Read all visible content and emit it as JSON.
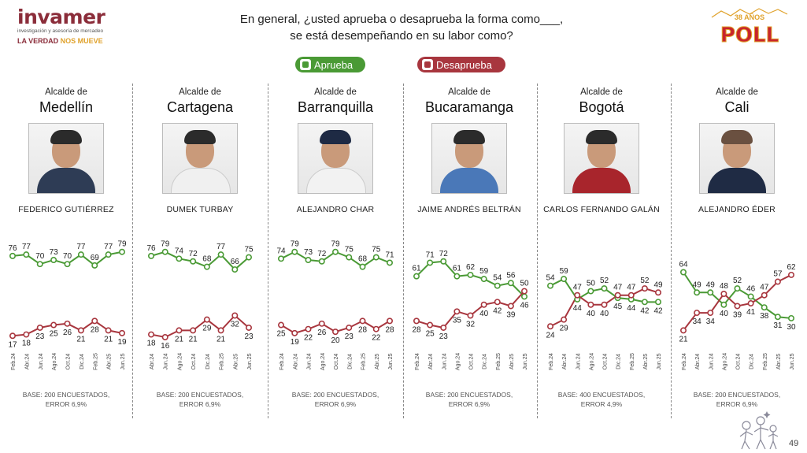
{
  "header": {
    "logo_name": "invamer",
    "logo_tagline": "investigación y asesoría de mercadeo",
    "logo_motto_a": "LA VERDAD ",
    "logo_motto_b": "NOS MUEVE",
    "question_line1": "En general, ¿usted aprueba o desaprueba la forma como___,",
    "question_line2": "se está desempeñando en su labor como?",
    "poll_top": "38 AÑOS",
    "poll_main": "POLL"
  },
  "legend": {
    "approve": "Aprueba",
    "disapprove": "Desaprueba"
  },
  "colors": {
    "approve": "#4a9a35",
    "disapprove": "#a8363e"
  },
  "page_number": "49",
  "chart_data": [
    {
      "type": "line",
      "title": "Alcalde de",
      "city": "Medellín",
      "person": "FEDERICO GUTIÉRREZ",
      "x": [
        "Feb.24",
        "Abr.24",
        "Jun.24",
        "Ago.24",
        "Oct.24",
        "Dic.24",
        "Feb.25",
        "Abr.25",
        "Jun.25"
      ],
      "series": [
        {
          "name": "Aprueba",
          "values": [
            76,
            77,
            70,
            73,
            70,
            77,
            69,
            77,
            79
          ]
        },
        {
          "name": "Desaprueba",
          "values": [
            17,
            18,
            23,
            25,
            26,
            21,
            28,
            21,
            19
          ]
        }
      ],
      "base": [
        "BASE: 200 ENCUESTADOS,",
        "ERROR 6,9%"
      ]
    },
    {
      "type": "line",
      "title": "Alcalde de",
      "city": "Cartagena",
      "person": "DUMEK TURBAY",
      "x": [
        "Abr.24",
        "Jun.24",
        "Ago.24",
        "Oct.24",
        "Dic.24",
        "Feb.25",
        "Abr.25",
        "Jun.25"
      ],
      "series": [
        {
          "name": "Aprueba",
          "values": [
            76,
            79,
            74,
            72,
            68,
            77,
            66,
            75
          ]
        },
        {
          "name": "Desaprueba",
          "values": [
            18,
            16,
            21,
            21,
            29,
            21,
            32,
            23
          ]
        }
      ],
      "base": [
        "BASE: 200 ENCUESTADOS,",
        "ERROR 6,9%"
      ]
    },
    {
      "type": "line",
      "title": "Alcalde de",
      "city": "Barranquilla",
      "person": "ALEJANDRO CHAR",
      "x": [
        "Feb.24",
        "Abr.24",
        "Jun.24",
        "Ago.24",
        "Oct.24",
        "Dic.24",
        "Feb.25",
        "Abr.25",
        "Jun.25"
      ],
      "series": [
        {
          "name": "Aprueba",
          "values": [
            74,
            79,
            73,
            72,
            79,
            75,
            68,
            75,
            71
          ]
        },
        {
          "name": "Desaprueba",
          "values": [
            25,
            19,
            22,
            26,
            20,
            23,
            28,
            22,
            28
          ]
        }
      ],
      "base": [
        "BASE: 200 ENCUESTADOS,",
        "ERROR 6,9%"
      ]
    },
    {
      "type": "line",
      "title": "Alcalde de",
      "city": "Bucaramanga",
      "person": "JAIME ANDRÉS BELTRÁN",
      "x": [
        "Feb.24",
        "Abr.24",
        "Jun.24",
        "Ago.24",
        "Oct.24",
        "Dic.24",
        "Feb.25",
        "Abr.25",
        "Jun.25"
      ],
      "series": [
        {
          "name": "Aprueba",
          "values": [
            61,
            71,
            72,
            61,
            62,
            59,
            54,
            56,
            46
          ]
        },
        {
          "name": "Desaprueba",
          "values": [
            28,
            25,
            23,
            35,
            32,
            40,
            42,
            39,
            50
          ]
        }
      ],
      "base": [
        "BASE: 200 ENCUESTADOS,",
        "ERROR 6,9%"
      ]
    },
    {
      "type": "line",
      "title": "Alcalde de",
      "city": "Bogotá",
      "person": "CARLOS FERNANDO GALÁN",
      "x": [
        "Feb.24",
        "Abr.24",
        "Jun.24",
        "Ago.24",
        "Oct.24",
        "Dic.24",
        "Feb.25",
        "Abr.25",
        "Jun.25"
      ],
      "series": [
        {
          "name": "Aprueba",
          "values": [
            54,
            59,
            44,
            50,
            52,
            45,
            44,
            42,
            42
          ]
        },
        {
          "name": "Desaprueba",
          "values": [
            24,
            29,
            47,
            40,
            40,
            47,
            47,
            52,
            49
          ]
        }
      ],
      "base": [
        "BASE: 400 ENCUESTADOS,",
        "ERROR 4,9%"
      ]
    },
    {
      "type": "line",
      "title": "Alcalde de",
      "city": "Cali",
      "person": "ALEJANDRO ÉDER",
      "x": [
        "Feb.24",
        "Abr.24",
        "Jun.24",
        "Ago.24",
        "Oct.24",
        "Dic.24",
        "Feb.25",
        "Abr.25",
        "Jun.25"
      ],
      "series": [
        {
          "name": "Aprueba",
          "values": [
            64,
            49,
            49,
            40,
            52,
            46,
            38,
            31,
            30
          ]
        },
        {
          "name": "Desaprueba",
          "values": [
            21,
            34,
            34,
            48,
            39,
            41,
            47,
            57,
            62
          ]
        }
      ],
      "base": [
        "BASE: 200 ENCUESTADOS,",
        "ERROR 6,9%"
      ]
    }
  ]
}
